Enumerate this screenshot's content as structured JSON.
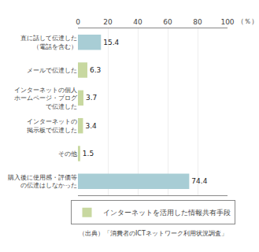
{
  "chart_data": {
    "type": "bar",
    "orientation": "horizontal",
    "categories": [
      "直に話して伝達した\n（電話を含む）",
      "メールで伝達した",
      "インターネットの個人\nホームページ・ブログ\nで伝達した",
      "インターネットの\n掲示板で伝達した",
      "その他",
      "購入後に使用感・評価等\nの伝達はしなかった"
    ],
    "series": [
      {
        "color": "#a8cdd5",
        "values": [
          15.4,
          null,
          null,
          null,
          null,
          74.4
        ]
      },
      {
        "name": "インターネットを活用した情報共有手段",
        "color": "#c8d8a0",
        "values": [
          null,
          6.3,
          3.7,
          3.4,
          1.5,
          null
        ]
      }
    ],
    "x_label": "（％）",
    "xlim": [
      0,
      100
    ],
    "xticks": [
      0,
      20,
      40,
      60,
      80,
      100
    ],
    "grid": true,
    "legend": "bottom",
    "data_labels": true,
    "annotations": [
      "（出典）「消費者のICTネットワーク利用状況調査」"
    ]
  }
}
